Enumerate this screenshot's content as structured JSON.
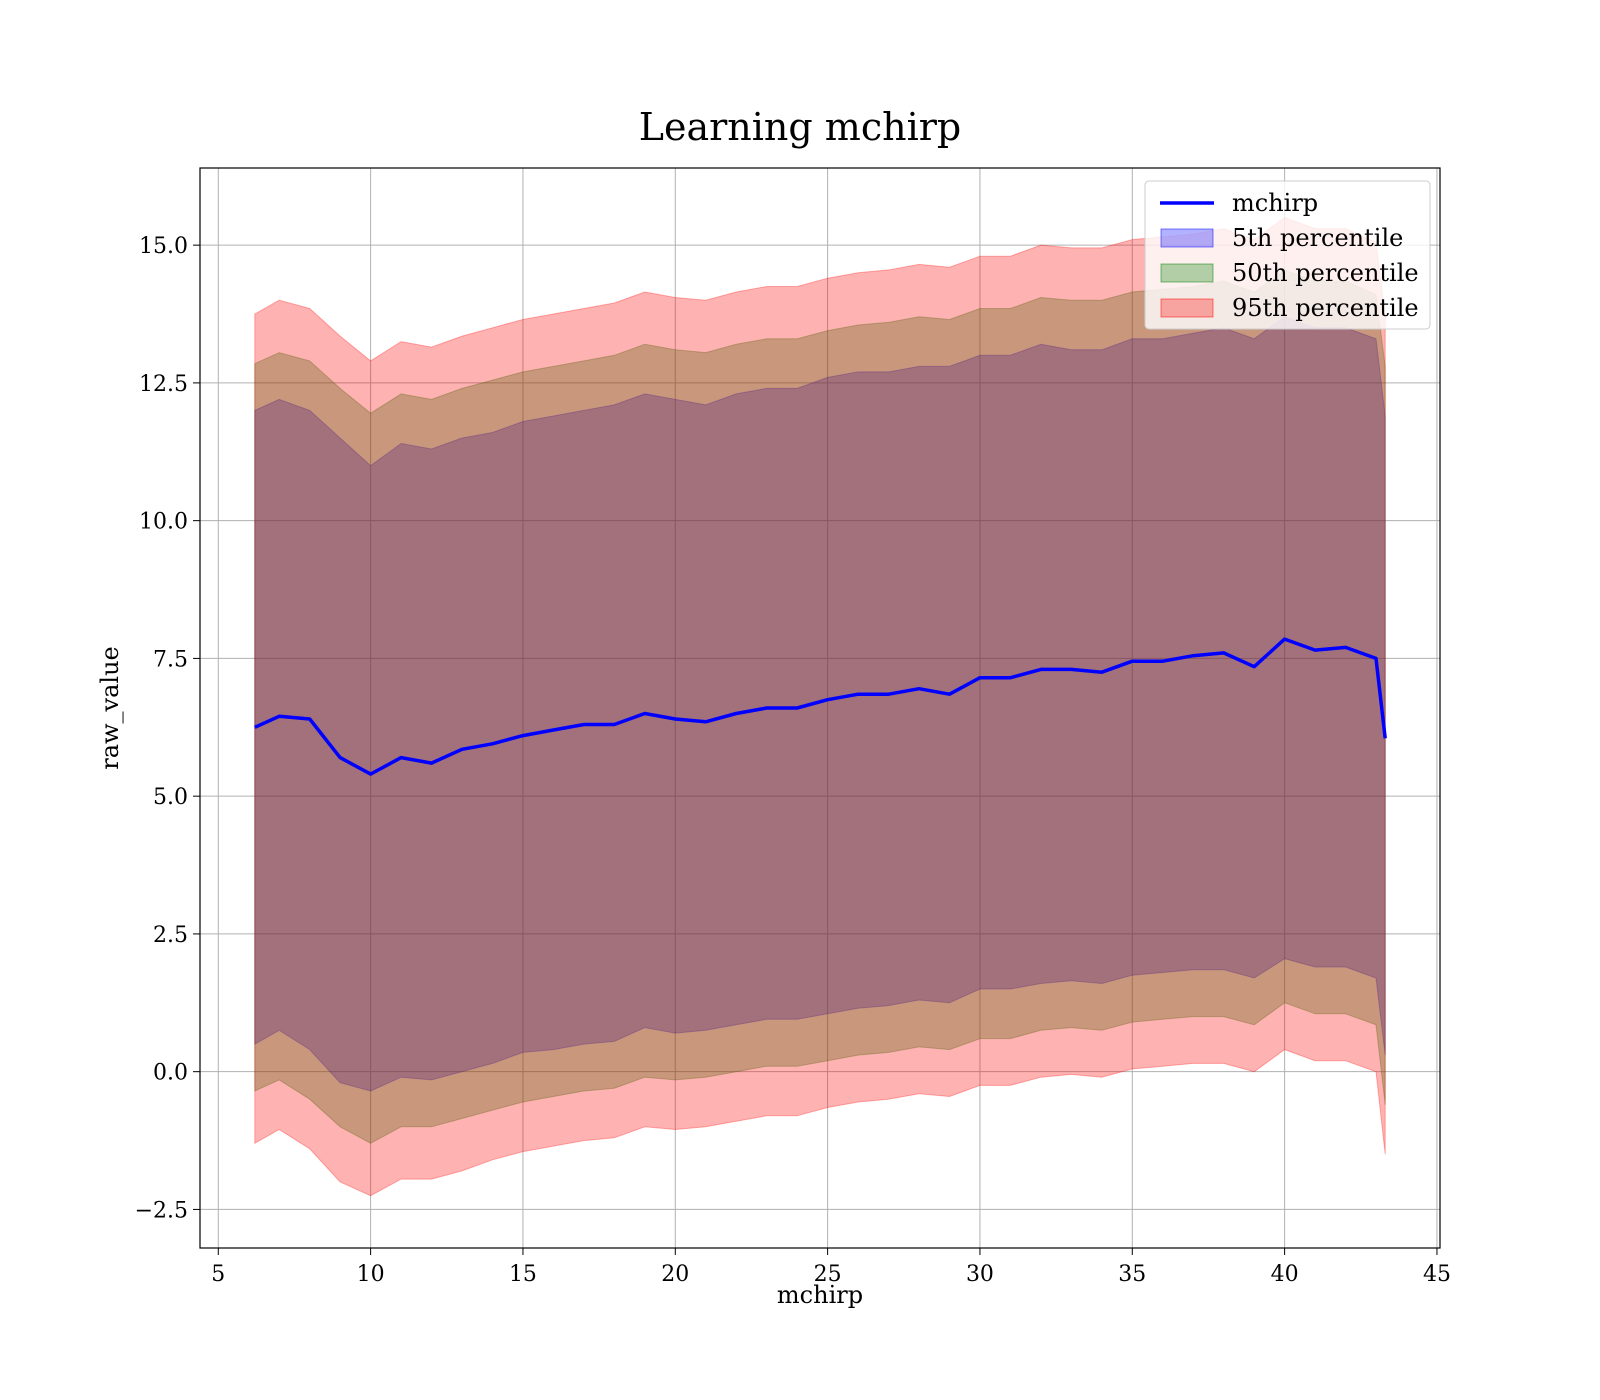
{
  "chart_data": {
    "type": "area",
    "title": "Learning mchirp",
    "xlabel": "mchirp",
    "ylabel": "raw_value",
    "xlim": [
      4.4,
      45.1
    ],
    "ylim": [
      -3.2,
      16.4
    ],
    "grid": true,
    "legend_position": "top-right",
    "x_ticks": [
      5,
      10,
      15,
      20,
      25,
      30,
      35,
      40,
      45
    ],
    "x_tick_labels": [
      "5",
      "10",
      "15",
      "20",
      "25",
      "30",
      "35",
      "40",
      "45"
    ],
    "y_ticks": [
      -2.5,
      0.0,
      2.5,
      5.0,
      7.5,
      10.0,
      12.5,
      15.0
    ],
    "y_tick_labels": [
      "−2.5",
      "0.0",
      "2.5",
      "5.0",
      "7.5",
      "10.0",
      "12.5",
      "15.0"
    ],
    "x": [
      6.2,
      7,
      8,
      9,
      10,
      11,
      12,
      13,
      14,
      15,
      16,
      17,
      18,
      19,
      20,
      21,
      22,
      23,
      24,
      25,
      26,
      27,
      28,
      29,
      30,
      31,
      32,
      33,
      34,
      35,
      36,
      37,
      38,
      39,
      40,
      41,
      42,
      43,
      43.3
    ],
    "series": [
      {
        "name": "mchirp",
        "kind": "line",
        "color": "#0000ff",
        "values": [
          6.25,
          6.45,
          6.4,
          5.7,
          5.4,
          5.7,
          5.6,
          5.85,
          5.95,
          6.1,
          6.2,
          6.3,
          6.3,
          6.5,
          6.4,
          6.35,
          6.5,
          6.6,
          6.6,
          6.75,
          6.85,
          6.85,
          6.95,
          6.85,
          7.15,
          7.15,
          7.3,
          7.3,
          7.25,
          7.45,
          7.45,
          7.55,
          7.6,
          7.35,
          7.85,
          7.65,
          7.7,
          7.5,
          6.05
        ]
      },
      {
        "name": "5th percentile",
        "kind": "band",
        "color": "#0000ff",
        "opacity": 0.3,
        "lower": [
          0.5,
          0.75,
          0.4,
          -0.2,
          -0.35,
          -0.1,
          -0.15,
          0.0,
          0.15,
          0.35,
          0.4,
          0.5,
          0.55,
          0.8,
          0.7,
          0.75,
          0.85,
          0.95,
          0.95,
          1.05,
          1.15,
          1.2,
          1.3,
          1.25,
          1.5,
          1.5,
          1.6,
          1.65,
          1.6,
          1.75,
          1.8,
          1.85,
          1.85,
          1.7,
          2.05,
          1.9,
          1.9,
          1.7,
          0.3
        ],
        "upper": [
          12.0,
          12.2,
          12.0,
          11.5,
          11.0,
          11.4,
          11.3,
          11.5,
          11.6,
          11.8,
          11.9,
          12.0,
          12.1,
          12.3,
          12.2,
          12.1,
          12.3,
          12.4,
          12.4,
          12.6,
          12.7,
          12.7,
          12.8,
          12.8,
          13.0,
          13.0,
          13.2,
          13.1,
          13.1,
          13.3,
          13.3,
          13.4,
          13.5,
          13.3,
          13.7,
          13.5,
          13.5,
          13.3,
          11.9
        ]
      },
      {
        "name": "50th percentile",
        "kind": "band",
        "color": "#008000",
        "opacity": 0.3,
        "lower": [
          -0.35,
          -0.15,
          -0.5,
          -1.0,
          -1.3,
          -1.0,
          -1.0,
          -0.85,
          -0.7,
          -0.55,
          -0.45,
          -0.35,
          -0.3,
          -0.1,
          -0.15,
          -0.1,
          0.0,
          0.1,
          0.1,
          0.2,
          0.3,
          0.35,
          0.45,
          0.4,
          0.6,
          0.6,
          0.75,
          0.8,
          0.75,
          0.9,
          0.95,
          1.0,
          1.0,
          0.85,
          1.25,
          1.05,
          1.05,
          0.85,
          -0.6
        ],
        "upper": [
          12.85,
          13.05,
          12.9,
          12.4,
          11.95,
          12.3,
          12.2,
          12.4,
          12.55,
          12.7,
          12.8,
          12.9,
          13.0,
          13.2,
          13.1,
          13.05,
          13.2,
          13.3,
          13.3,
          13.45,
          13.55,
          13.6,
          13.7,
          13.65,
          13.85,
          13.85,
          14.05,
          14.0,
          14.0,
          14.15,
          14.2,
          14.25,
          14.35,
          14.15,
          14.55,
          14.35,
          14.35,
          14.1,
          12.8
        ]
      },
      {
        "name": "95th percentile",
        "kind": "band",
        "color": "#ff0000",
        "opacity": 0.3,
        "lower": [
          -1.3,
          -1.05,
          -1.4,
          -2.0,
          -2.25,
          -1.95,
          -1.95,
          -1.8,
          -1.6,
          -1.45,
          -1.35,
          -1.25,
          -1.2,
          -1.0,
          -1.05,
          -1.0,
          -0.9,
          -0.8,
          -0.8,
          -0.65,
          -0.55,
          -0.5,
          -0.4,
          -0.45,
          -0.25,
          -0.25,
          -0.1,
          -0.05,
          -0.1,
          0.05,
          0.1,
          0.15,
          0.15,
          0.0,
          0.4,
          0.2,
          0.2,
          0.0,
          -1.5
        ],
        "upper": [
          13.75,
          14.0,
          13.85,
          13.35,
          12.9,
          13.25,
          13.15,
          13.35,
          13.5,
          13.65,
          13.75,
          13.85,
          13.95,
          14.15,
          14.05,
          14.0,
          14.15,
          14.25,
          14.25,
          14.4,
          14.5,
          14.55,
          14.65,
          14.6,
          14.8,
          14.8,
          15.0,
          14.95,
          14.95,
          15.1,
          15.15,
          15.2,
          15.3,
          15.1,
          15.5,
          15.3,
          15.3,
          15.05,
          13.7
        ]
      }
    ]
  }
}
